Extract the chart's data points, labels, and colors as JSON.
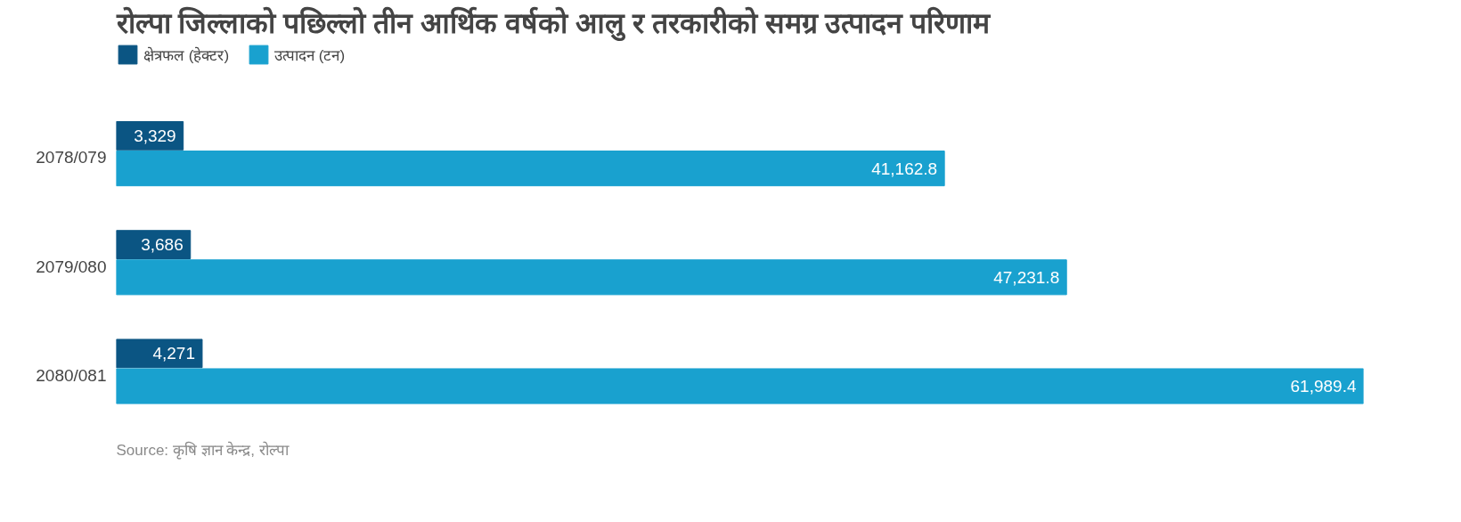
{
  "chart_data": {
    "type": "bar",
    "orientation": "horizontal",
    "title": "रोल्पा जिल्लाको पछिल्लो तीन आर्थिक वर्षको आलु र तरकारीको समग्र उत्पादन परिणाम",
    "categories": [
      "2078/079",
      "2079/080",
      "2080/081"
    ],
    "series": [
      {
        "name": "क्षेत्रफल (हेक्टर)",
        "color": "#0b5583",
        "values": [
          3329,
          3686,
          4271
        ],
        "value_labels": [
          "3,329",
          "3,686",
          "4,271"
        ]
      },
      {
        "name": "उत्पादन (टन)",
        "color": "#19a1cf",
        "values": [
          41162.8,
          47231.8,
          61989.4
        ],
        "value_labels": [
          "41,162.8",
          "47,231.8",
          "61,989.4"
        ]
      }
    ],
    "legend": "top left",
    "tick_labels": "y",
    "annotations": [
      "Source: कृषि ज्ञान केन्द्र, रोल्पा"
    ]
  }
}
